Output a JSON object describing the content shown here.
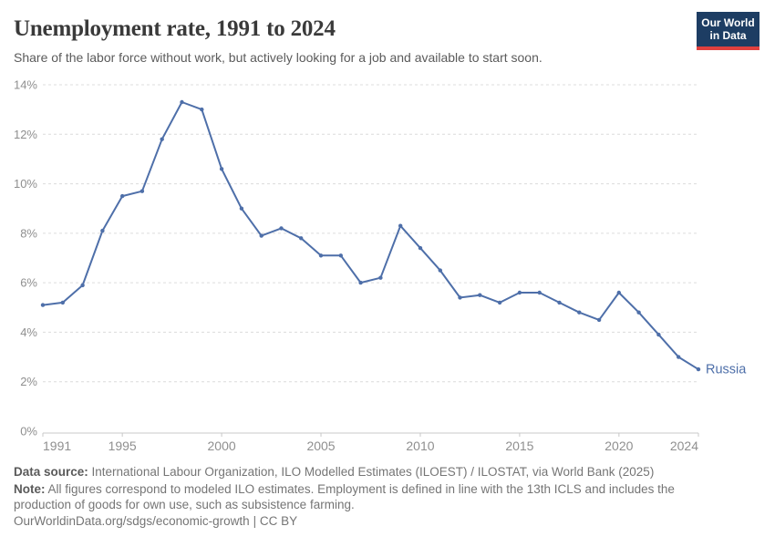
{
  "header": {
    "title": "Unemployment rate, 1991 to 2024",
    "subtitle": "Share of the labor force without work, but actively looking for a job and available to start soon.",
    "logo": {
      "line1": "Our World",
      "line2": "in Data"
    }
  },
  "chart_data": {
    "type": "line",
    "title": "Unemployment rate, 1991 to 2024",
    "x": [
      1991,
      1992,
      1993,
      1994,
      1995,
      1996,
      1997,
      1998,
      1999,
      2000,
      2001,
      2002,
      2003,
      2004,
      2005,
      2006,
      2007,
      2008,
      2009,
      2010,
      2011,
      2012,
      2013,
      2014,
      2015,
      2016,
      2017,
      2018,
      2019,
      2020,
      2021,
      2022,
      2023,
      2024
    ],
    "series": [
      {
        "name": "Russia",
        "color": "#4e6fa9",
        "values": [
          5.1,
          5.2,
          5.9,
          8.1,
          9.5,
          9.7,
          11.8,
          13.3,
          13.0,
          10.6,
          9.0,
          7.9,
          8.2,
          7.8,
          7.1,
          7.1,
          6.0,
          6.2,
          8.3,
          7.4,
          6.5,
          5.4,
          5.5,
          5.2,
          5.6,
          5.6,
          5.2,
          4.8,
          4.5,
          5.6,
          4.8,
          3.9,
          3.0,
          2.5
        ]
      }
    ],
    "unit": "%",
    "xlim": [
      1991,
      2024
    ],
    "ylim": [
      0,
      14
    ],
    "y_ticks": [
      0,
      2,
      4,
      6,
      8,
      10,
      12,
      14
    ],
    "x_ticks": [
      1991,
      1995,
      2000,
      2005,
      2010,
      2015,
      2020,
      2024
    ],
    "grid": "horizontal-dashed",
    "legend": "line-end-label"
  },
  "footer": {
    "data_source_label": "Data source:",
    "data_source_text": " International Labour Organization, ILO Modelled Estimates (ILOEST) / ILOSTAT, via World Bank (2025)",
    "note_label": "Note:",
    "note_text": " All figures correspond to modeled ILO estimates. Employment is defined in line with the 13th ICLS and includes the production of goods for own use, such as subsistence farming.",
    "link": "OurWorldinData.org/sdgs/economic-growth",
    "cc": "| CC BY"
  },
  "colors": {
    "line": "#4e6fa9",
    "axis_label": "#8f8f8f",
    "gridline": "#dcdcdc",
    "axis_line": "#c8c8c8"
  }
}
